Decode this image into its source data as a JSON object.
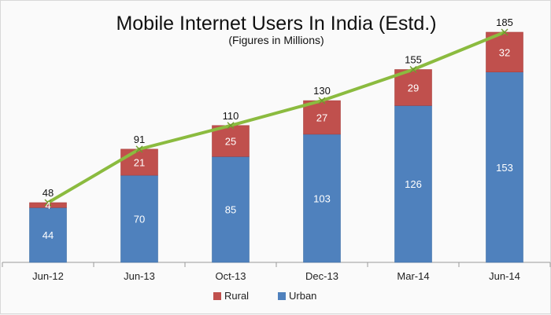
{
  "chart_data": {
    "type": "bar",
    "stacked": true,
    "title": "Mobile Internet Users In India (Estd.)",
    "subtitle": "(Figures in Millions)",
    "categories": [
      "Jun-12",
      "Jun-13",
      "Oct-13",
      "Dec-13",
      "Mar-14",
      "Jun-14"
    ],
    "series": [
      {
        "name": "Urban",
        "values": [
          44,
          70,
          85,
          103,
          126,
          153
        ],
        "color": "#4f81bd"
      },
      {
        "name": "Rural",
        "values": [
          4,
          21,
          25,
          27,
          29,
          32
        ],
        "color": "#c0504d"
      }
    ],
    "totals": {
      "type": "line",
      "values": [
        48,
        91,
        110,
        130,
        155,
        185
      ],
      "color": "#8bbb3f"
    },
    "ylim": [
      0,
      185
    ],
    "grid": false,
    "legend": {
      "position": "bottom",
      "entries": [
        "Rural",
        "Urban"
      ]
    }
  }
}
